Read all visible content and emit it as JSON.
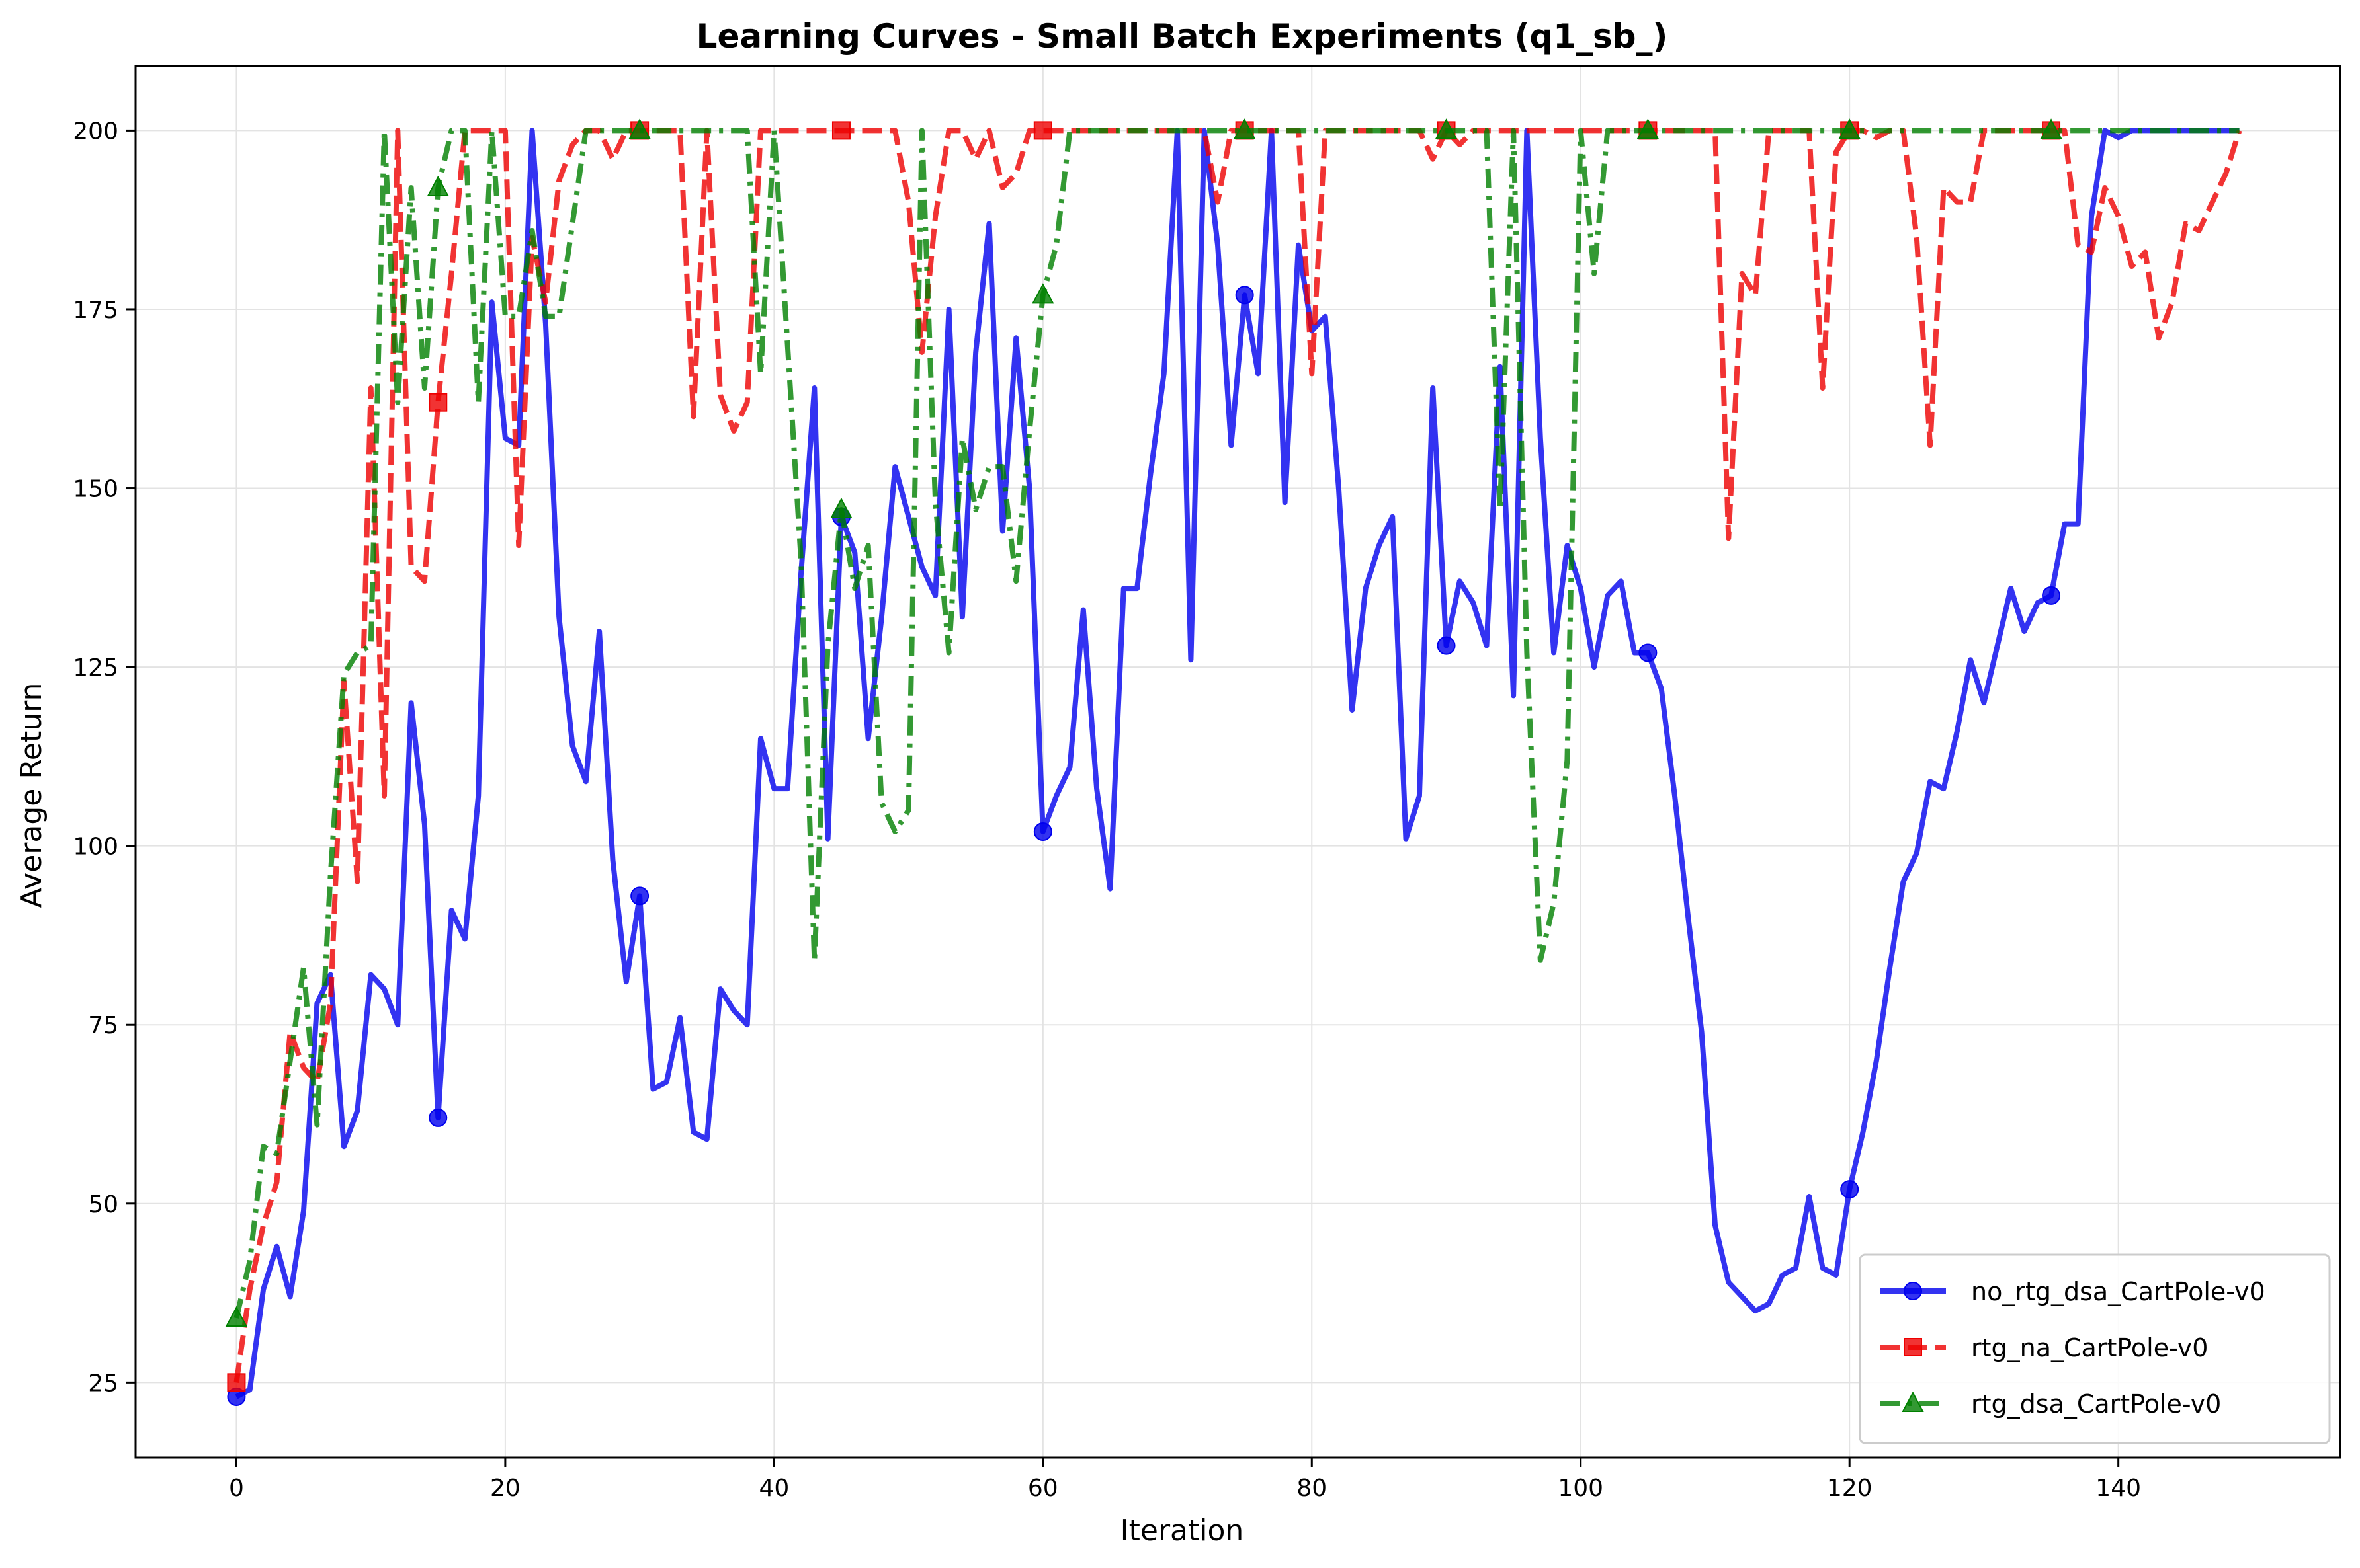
{
  "chart_data": {
    "type": "line",
    "title": "Learning Curves - Small Batch Experiments (q1_sb_)",
    "xlabel": "Iteration",
    "ylabel": "Average Return",
    "xlim": [
      -7.5,
      156.5
    ],
    "ylim": [
      14.5,
      209
    ],
    "xticks": [
      0,
      20,
      40,
      60,
      80,
      100,
      120,
      140
    ],
    "yticks": [
      25,
      50,
      75,
      100,
      125,
      150,
      175,
      200
    ],
    "xtick_labels": [
      "0",
      "20",
      "40",
      "60",
      "80",
      "100",
      "120",
      "140"
    ],
    "ytick_labels": [
      "25",
      "50",
      "75",
      "100",
      "125",
      "150",
      "175",
      "200"
    ],
    "grid": true,
    "legend_position": "lower-right",
    "marker_every": 15,
    "series": [
      {
        "name": "no_rtg_dsa_CartPole-v0",
        "color": "#0000ee",
        "line_style": "solid",
        "marker": "circle",
        "x_start": 0,
        "values": [
          23,
          24,
          38,
          44,
          37,
          49,
          78,
          82,
          58,
          63,
          82,
          80,
          75,
          120,
          103,
          62,
          91,
          87,
          107,
          176,
          157,
          156,
          200,
          173,
          132,
          114,
          109,
          130,
          98,
          81,
          93,
          66,
          67,
          76,
          60,
          59,
          80,
          77,
          75,
          115,
          108,
          108,
          138,
          164,
          101,
          146,
          141,
          115,
          132,
          153,
          146,
          139,
          135,
          175,
          132,
          169,
          187,
          144,
          171,
          150,
          102,
          107,
          111,
          133,
          108,
          94,
          136,
          136,
          152,
          166,
          200,
          126,
          200,
          184,
          156,
          177,
          166,
          200,
          148,
          184,
          172,
          174,
          150,
          119,
          136,
          142,
          146,
          101,
          107,
          164,
          128,
          137,
          134,
          128,
          167,
          121,
          200,
          157,
          127,
          142,
          136,
          125,
          135,
          137,
          127,
          127,
          122,
          107,
          90,
          74,
          47,
          39,
          37,
          35,
          36,
          40,
          41,
          51,
          41,
          40,
          52,
          60,
          70,
          83,
          95,
          99,
          109,
          108,
          116,
          126,
          120,
          128,
          136,
          130,
          134,
          135,
          145,
          145,
          188,
          200,
          199,
          200,
          200,
          200,
          200,
          200,
          200,
          200,
          200,
          200
        ]
      },
      {
        "name": "rtg_na_CartPole-v0",
        "color": "#ee0000",
        "line_style": "dashed",
        "marker": "square",
        "x_start": 0,
        "values": [
          25,
          38,
          47,
          53,
          74,
          69,
          67,
          78,
          123,
          95,
          164,
          107,
          200,
          139,
          137,
          162,
          180,
          200,
          200,
          200,
          200,
          142,
          185,
          176,
          193,
          198,
          200,
          200,
          196,
          200,
          200,
          200,
          200,
          200,
          160,
          200,
          163,
          158,
          162,
          200,
          200,
          200,
          200,
          200,
          200,
          200,
          200,
          200,
          200,
          200,
          190,
          169,
          188,
          200,
          200,
          196,
          200,
          192,
          194,
          200,
          200,
          200,
          200,
          200,
          200,
          200,
          200,
          200,
          200,
          200,
          200,
          200,
          200,
          190,
          200,
          200,
          200,
          200,
          200,
          200,
          166,
          200,
          200,
          200,
          200,
          200,
          200,
          200,
          200,
          196,
          200,
          198,
          200,
          200,
          200,
          200,
          200,
          200,
          200,
          200,
          200,
          200,
          200,
          200,
          200,
          200,
          200,
          200,
          200,
          200,
          200,
          143,
          180,
          177,
          200,
          200,
          200,
          200,
          164,
          197,
          200,
          200,
          199,
          200,
          200,
          185,
          156,
          192,
          190,
          190,
          200,
          200,
          200,
          200,
          200,
          200,
          200,
          184,
          183,
          192,
          188,
          181,
          183,
          171,
          176,
          187,
          186,
          190,
          194,
          200
        ]
      },
      {
        "name": "rtg_dsa_CartPole-v0",
        "color": "#008000",
        "line_style": "dashdot",
        "marker": "triangle",
        "x_start": 0,
        "values": [
          34,
          42,
          58,
          57,
          70,
          83,
          61,
          96,
          124,
          127,
          128,
          200,
          162,
          192,
          164,
          192,
          200,
          200,
          162,
          200,
          174,
          174,
          186,
          174,
          174,
          187,
          200,
          200,
          200,
          200,
          200,
          200,
          200,
          200,
          200,
          200,
          200,
          200,
          200,
          166,
          200,
          170,
          140,
          84,
          128,
          147,
          136,
          142,
          106,
          102,
          105,
          200,
          148,
          127,
          157,
          147,
          153,
          153,
          137,
          158,
          177,
          184,
          200,
          200,
          200,
          200,
          200,
          200,
          200,
          200,
          200,
          200,
          200,
          200,
          200,
          200,
          200,
          200,
          200,
          200,
          200,
          200,
          200,
          200,
          200,
          200,
          200,
          200,
          200,
          200,
          200,
          200,
          200,
          200,
          147,
          200,
          127,
          84,
          92,
          112,
          200,
          180,
          200,
          200,
          200,
          200,
          200,
          200,
          200,
          200,
          200,
          200,
          200,
          200,
          200,
          200,
          200,
          200,
          200,
          200,
          200,
          200,
          200,
          200,
          200,
          200,
          200,
          200,
          200,
          200,
          200,
          200,
          200,
          200,
          200,
          200,
          200,
          200,
          200,
          200,
          200,
          200,
          200,
          200,
          200,
          200,
          200,
          200,
          200,
          200
        ]
      }
    ]
  }
}
